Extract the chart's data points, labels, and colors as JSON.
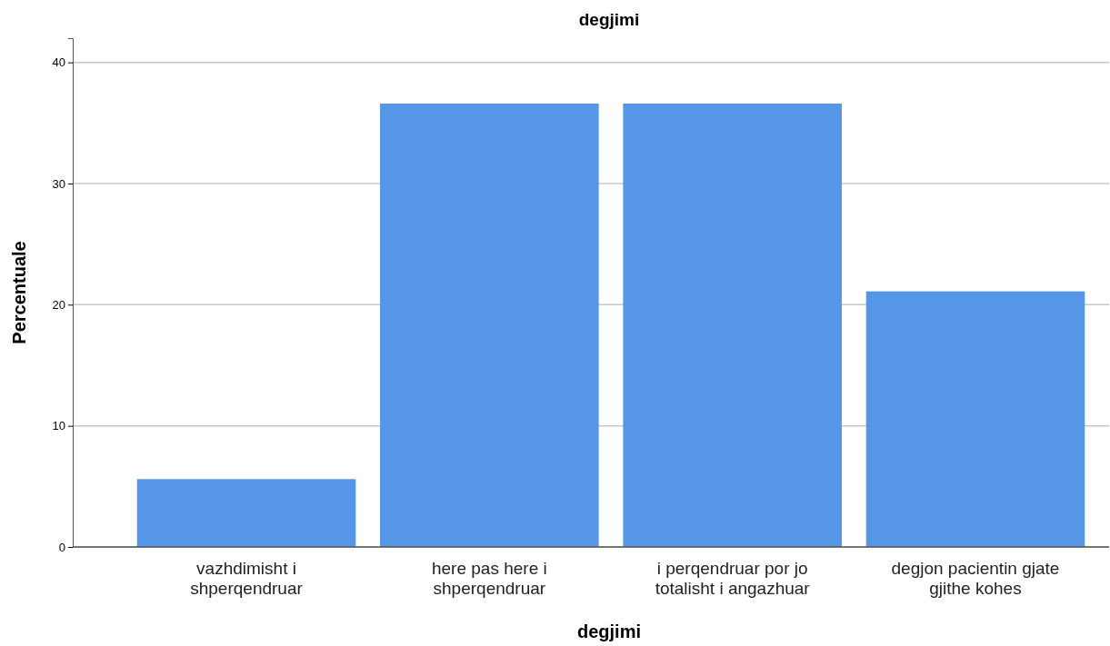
{
  "chart_data": {
    "type": "bar",
    "title": "degjimi",
    "xlabel": "degjimi",
    "ylabel": "Percentuale",
    "categories": [
      "vazhdimisht i shperqendruar",
      "here pas here i shperqendruar",
      "i perqendruar por jo totalisht i angazhuar",
      "degjon pacientin gjate gjithe kohes"
    ],
    "values": [
      5.6,
      36.6,
      36.6,
      21.1
    ],
    "color": "#5596e6",
    "ylim": [
      0,
      42
    ],
    "yticks": [
      0,
      10,
      20,
      30,
      40
    ],
    "grid": "y"
  }
}
